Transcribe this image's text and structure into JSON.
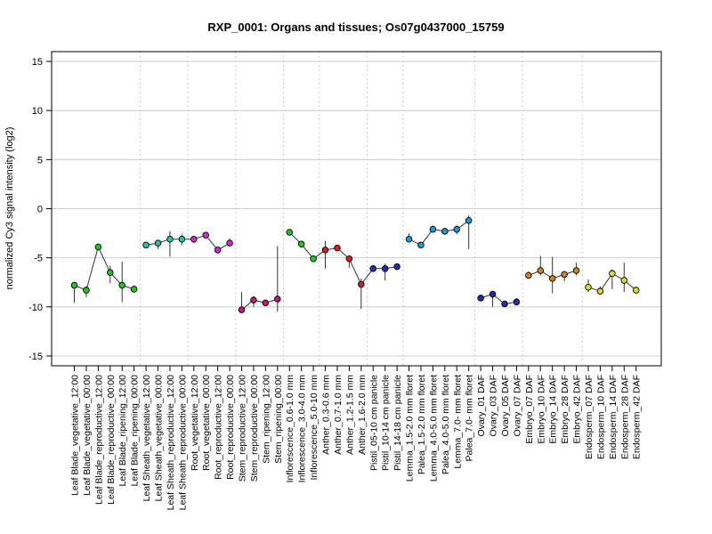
{
  "chart_data": {
    "type": "line",
    "title": "RXP_0001: Organs and tissues; Os07g0437000_15759",
    "xlabel": "",
    "ylabel": "normalized Cy3 signal intensity (log2)",
    "ylim": [
      -16,
      16
    ],
    "yticks": [
      -15,
      -10,
      -5,
      0,
      5,
      10,
      15
    ],
    "grid": true,
    "categories": [
      "Leaf Blade_vegetative_12:00",
      "Leaf Blade_vegetative_00:00",
      "Leaf Blade_reproductive_12:00",
      "Leaf Blade_reproductive_00:00",
      "Leaf Blade_ripening_12:00",
      "Leaf Blade_ripening_00:00",
      "Leaf Sheath_vegetative_12:00",
      "Leaf Sheath_vegetative_00:00",
      "Leaf Sheath_reproductive_12:00",
      "Leaf Sheath_reproductive_00:00",
      "Root_vegetative_12:00",
      "Root_vegetative_00:00",
      "Root_reproductive_12:00",
      "Root_reproductive_00:00",
      "Stem_reproductive_12:00",
      "Stem_reproductive_00:00",
      "Stem_ripening_12:00",
      "Stem_ripening_00:00",
      "Inflorescence_0.6-1.0 mm",
      "Inflorescence_3.0-4.0 mm",
      "Inflorescence_5.0-10 mm",
      "Anther_0.3-0.6 mm",
      "Anther_0.7-1.0 mm",
      "Anther_1.2-1.5 mm",
      "Anther_1.6-2.0 mm",
      "Pistil_05-10 cm panicle",
      "Pistil_10-14 cm panicle",
      "Pistil_14-18 cm panicle",
      "Lemma_1.5-2.0 mm floret",
      "Palea_1.5-2.0 mm floret",
      "Lemma_4.0-5.0 mm floret",
      "Palea_4.0-5.0 mm floret",
      "Lemma_7.0- mm floret",
      "Palea_7.0- mm floret",
      "Ovary_01 DAF",
      "Ovary_03 DAF",
      "Ovary_05 DAF",
      "Ovary_07 DAF",
      "Embryo_07 DAF",
      "Embryo_10 DAF",
      "Embryo_14 DAF",
      "Embryo_28 DAF",
      "Embryo_42 DAF",
      "Endosperm_07 DAF",
      "Endosperm_10 DAF",
      "Endosperm_14 DAF",
      "Endosperm_28 DAF",
      "Endosperm_42 DAF"
    ],
    "groups": [
      {
        "members": [
          0,
          1,
          2,
          3,
          4,
          5
        ],
        "color": "#22c722"
      },
      {
        "members": [
          6,
          7,
          8,
          9
        ],
        "color": "#22c7a8"
      },
      {
        "members": [
          10,
          11,
          12,
          13
        ],
        "color": "#d22ad2"
      },
      {
        "members": [
          14,
          15,
          16,
          17
        ],
        "color": "#c21a7a"
      },
      {
        "members": [
          18,
          19,
          20
        ],
        "color": "#22c722"
      },
      {
        "members": [
          21,
          22,
          23,
          24
        ],
        "color": "#d42020"
      },
      {
        "members": [
          25,
          26,
          27
        ],
        "color": "#2828c8"
      },
      {
        "members": [
          28,
          29,
          30,
          31,
          32,
          33
        ],
        "color": "#1a9ad8"
      },
      {
        "members": [
          34,
          35,
          36,
          37
        ],
        "color": "#1b2fb0"
      },
      {
        "members": [
          38,
          39,
          40,
          41,
          42
        ],
        "color": "#d8821a"
      },
      {
        "members": [
          43,
          44,
          45,
          46,
          47
        ],
        "color": "#d8e02a"
      }
    ],
    "line_breaks": [
      [
        0,
        5
      ],
      [
        6,
        13
      ],
      [
        14,
        17
      ],
      [
        18,
        27
      ],
      [
        28,
        33
      ],
      [
        34,
        37
      ],
      [
        38,
        42
      ],
      [
        43,
        47
      ]
    ],
    "series": [
      {
        "values": [
          -7.8,
          -8.3,
          -3.9,
          -6.5,
          -7.8,
          -8.2,
          -3.7,
          -3.5,
          -3.1,
          -3.1,
          -3.1,
          -2.7,
          -4.2,
          -3.5,
          -10.3,
          -9.3,
          -9.6,
          -9.2,
          -2.4,
          -3.6,
          -5.1,
          -4.2,
          -4.0,
          -5.1,
          -7.7,
          -6.1,
          -6.1,
          -5.9,
          -3.1,
          -3.7,
          -2.1,
          -2.3,
          -2.1,
          -1.2,
          -9.1,
          -8.7,
          -9.7,
          -9.5,
          -6.8,
          -6.3,
          -7.1,
          -6.7,
          -6.3,
          -8.0,
          -8.4,
          -6.6,
          -7.3,
          -8.3
        ],
        "lower": [
          -9.6,
          -9.0,
          -4.2,
          -7.6,
          -9.5,
          -8.4,
          -3.8,
          -4.1,
          -4.9,
          -3.7,
          -3.5,
          -2.8,
          -4.4,
          -3.7,
          -10.5,
          -10.0,
          -9.8,
          -10.5,
          -2.6,
          -3.8,
          -5.2,
          -6.1,
          -4.3,
          -6.0,
          -10.2,
          -6.2,
          -7.3,
          -6.1,
          -3.4,
          -4.0,
          -2.3,
          -2.6,
          -2.6,
          -4.1,
          -9.4,
          -10.0,
          -10.0,
          -9.8,
          -7.1,
          -6.8,
          -8.6,
          -7.4,
          -6.8,
          -8.5,
          -8.6,
          -8.2,
          -8.5,
          -8.5
        ],
        "upper": [
          -7.5,
          -7.9,
          -3.6,
          -5.8,
          -5.4,
          -7.8,
          -3.5,
          -3.2,
          -2.3,
          -2.6,
          -2.8,
          -2.5,
          -4.0,
          -3.0,
          -8.5,
          -8.9,
          -9.3,
          -3.8,
          -2.1,
          -3.3,
          -4.8,
          -3.3,
          -3.8,
          -4.8,
          -7.1,
          -5.9,
          -5.6,
          -5.6,
          -2.5,
          -3.4,
          -1.7,
          -2.1,
          -1.7,
          -0.7,
          -8.8,
          -8.5,
          -9.5,
          -9.1,
          -6.4,
          -4.8,
          -4.9,
          -6.4,
          -5.5,
          -7.2,
          -7.9,
          -6.2,
          -5.5,
          -8.0
        ]
      }
    ]
  }
}
